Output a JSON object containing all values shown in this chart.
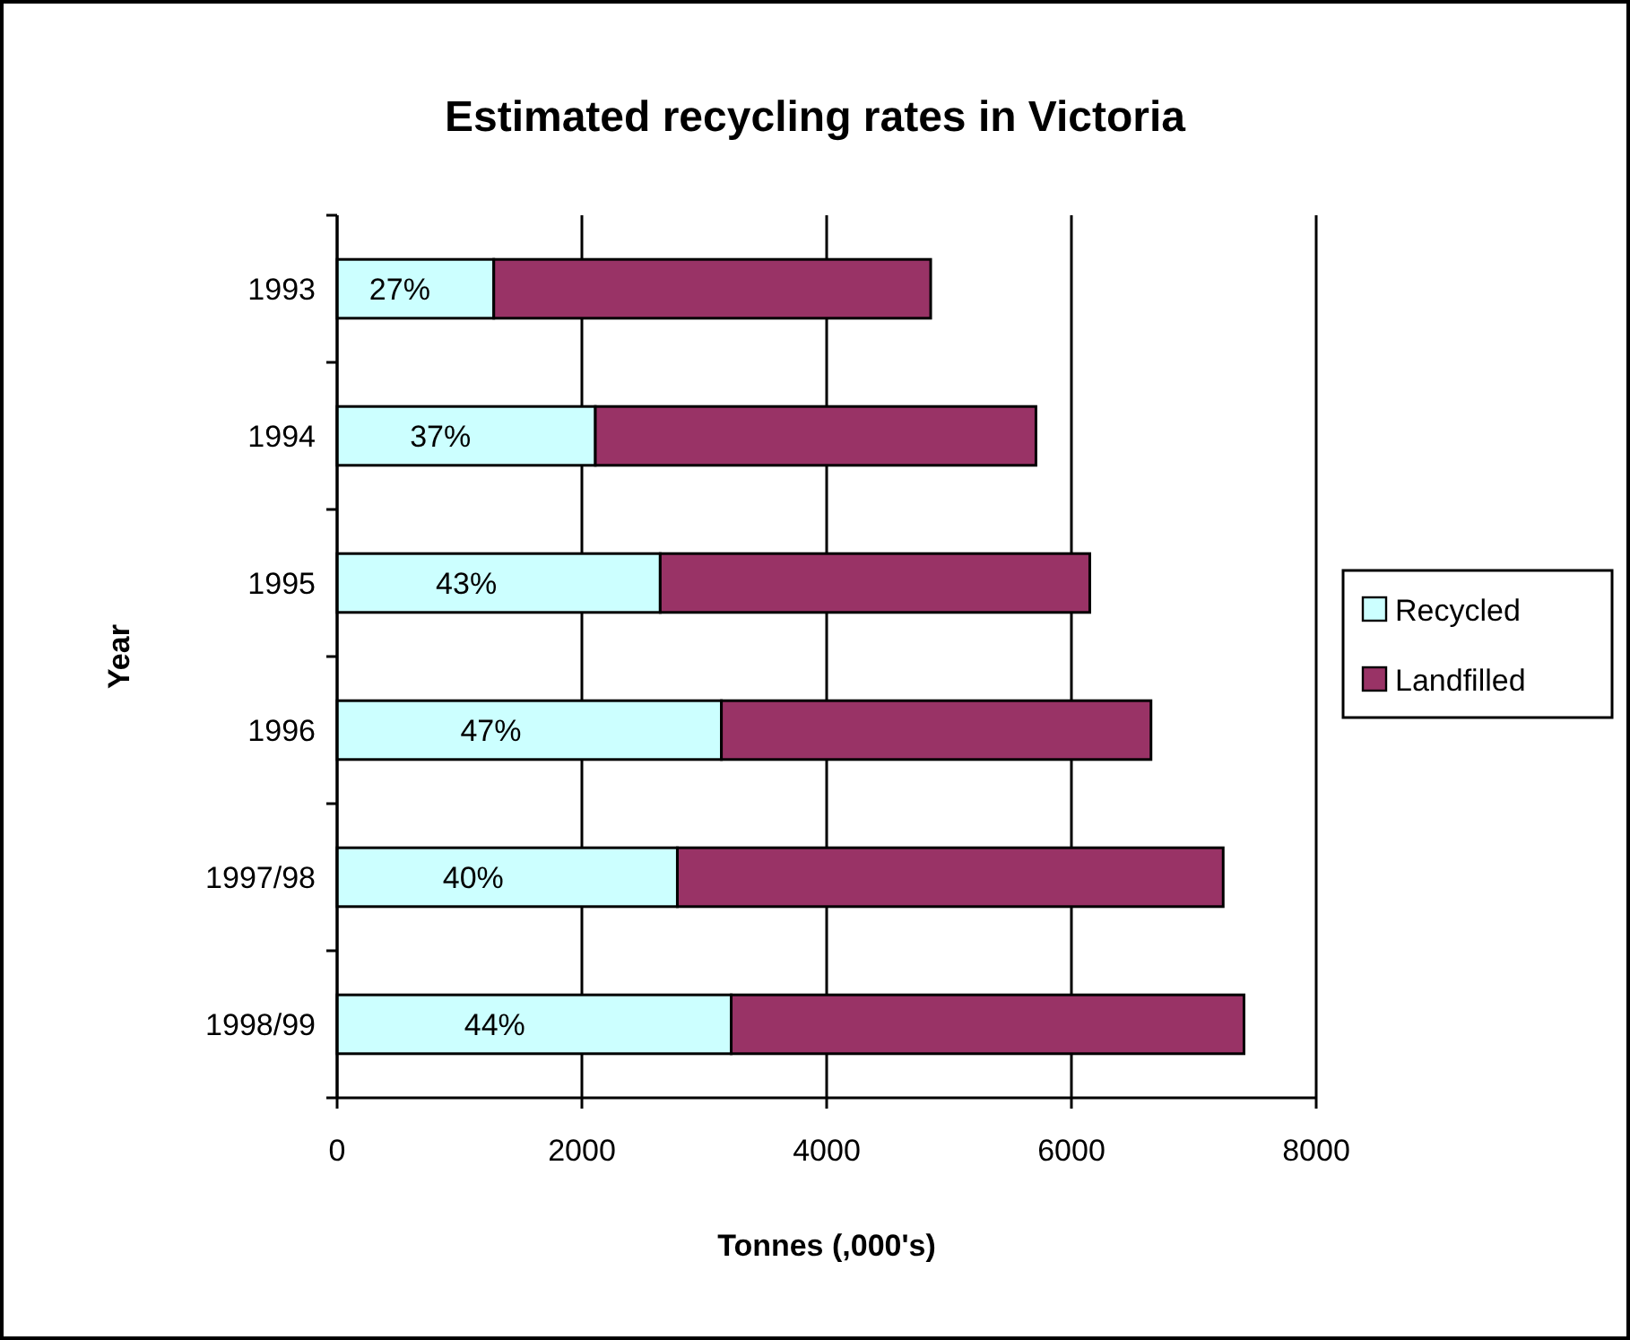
{
  "chart_data": {
    "type": "bar",
    "orientation": "horizontal",
    "stacked": true,
    "title": "Estimated recycling rates in Victoria",
    "xlabel": "Tonnes (,000's)",
    "ylabel": "Year",
    "categories": [
      "1993",
      "1994",
      "1995",
      "1996",
      "1997/98",
      "1998/99"
    ],
    "series": [
      {
        "name": "Recycled",
        "color": "#ccffff",
        "values": [
          1280,
          2110,
          2640,
          3140,
          2780,
          3220
        ]
      },
      {
        "name": "Landfilled",
        "color": "#993366",
        "values": [
          3570,
          3600,
          3510,
          3510,
          4460,
          4190
        ]
      }
    ],
    "annotations": [
      "27%",
      "37%",
      "43%",
      "47%",
      "40%",
      "44%"
    ],
    "xlim": [
      0,
      8000
    ],
    "xticks": [
      0,
      2000,
      4000,
      6000,
      8000
    ],
    "grid": "x",
    "legend": "right"
  }
}
